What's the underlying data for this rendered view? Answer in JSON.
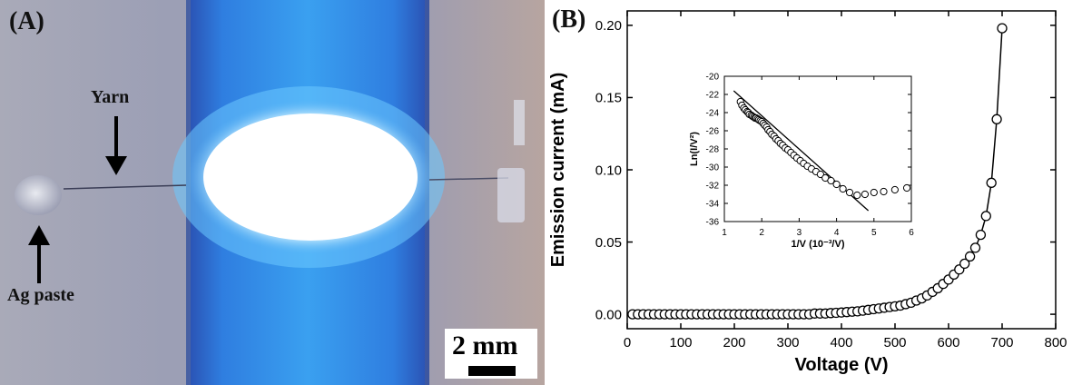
{
  "panel_a": {
    "letter": "(A)",
    "yarn_label": "Yarn",
    "paste_label": "Ag paste",
    "scale_label": "2 mm"
  },
  "panel_b": {
    "letter": "(B)"
  },
  "chart_data": [
    {
      "type": "scatter",
      "title": "",
      "xlabel": "Voltage (V)",
      "ylabel": "Emission current (mA)",
      "xlim": [
        0,
        800
      ],
      "ylim": [
        -0.01,
        0.21
      ],
      "xticks": [
        0,
        100,
        200,
        300,
        400,
        500,
        600,
        700,
        800
      ],
      "yticks": [
        0.0,
        0.05,
        0.1,
        0.15,
        0.2
      ],
      "ytick_labels": [
        "0.00",
        "0.05",
        "0.10",
        "0.15",
        "0.20"
      ],
      "grid": false,
      "marker": "open-circle",
      "connected": true,
      "series": [
        {
          "x": [
            10,
            20,
            30,
            40,
            50,
            60,
            70,
            80,
            90,
            100,
            110,
            120,
            130,
            140,
            150,
            160,
            170,
            180,
            190,
            200,
            210,
            220,
            230,
            240,
            250,
            260,
            270,
            280,
            290,
            300,
            310,
            320,
            330,
            340,
            350,
            360,
            370,
            380,
            390,
            400,
            410,
            420,
            430,
            440,
            450,
            460,
            470,
            480,
            490,
            500,
            510,
            520,
            530,
            540,
            550,
            560,
            570,
            580,
            590,
            600,
            610,
            620,
            630,
            640,
            650,
            660,
            670,
            680,
            690,
            700
          ],
          "y": [
            0.0,
            0.0,
            0.0,
            0.0,
            0.0,
            0.0,
            0.0,
            0.0,
            0.0,
            0.0,
            0.0,
            0.0,
            0.0,
            0.0,
            0.0,
            0.0,
            0.0,
            0.0,
            0.0,
            0.0,
            0.0,
            0.0,
            0.0,
            0.0,
            0.0,
            0.0,
            0.0,
            0.0,
            0.0,
            0.0,
            0.0,
            0.0,
            0.0,
            0.0,
            0.0005,
            0.0005,
            0.0005,
            0.0008,
            0.001,
            0.0012,
            0.0015,
            0.0018,
            0.002,
            0.0025,
            0.003,
            0.0035,
            0.004,
            0.0045,
            0.005,
            0.0055,
            0.006,
            0.007,
            0.008,
            0.0095,
            0.011,
            0.013,
            0.0155,
            0.018,
            0.021,
            0.024,
            0.0275,
            0.031,
            0.035,
            0.04,
            0.046,
            0.055,
            0.068,
            0.091,
            0.135,
            0.198
          ]
        }
      ]
    },
    {
      "type": "scatter",
      "title": "",
      "xlabel": "1/V (10⁻³/V)",
      "ylabel": "Ln(I/V²)",
      "xlim": [
        1,
        6
      ],
      "ylim": [
        -36,
        -20
      ],
      "xticks": [
        1,
        2,
        3,
        4,
        5,
        6
      ],
      "yticks": [
        -36,
        -34,
        -32,
        -30,
        -28,
        -26,
        -24,
        -22,
        -20
      ],
      "grid": false,
      "marker": "open-circle",
      "fit_line": {
        "x": [
          1.25,
          4.85
        ],
        "y": [
          -21.6,
          -34.8
        ]
      },
      "series": [
        {
          "x": [
            1.43,
            1.47,
            1.52,
            1.56,
            1.61,
            1.64,
            1.67,
            1.72,
            1.75,
            1.79,
            1.82,
            1.85,
            1.89,
            1.92,
            1.96,
            2.0,
            2.04,
            2.08,
            2.13,
            2.17,
            2.22,
            2.27,
            2.33,
            2.38,
            2.44,
            2.5,
            2.56,
            2.63,
            2.7,
            2.78,
            2.86,
            2.94,
            3.03,
            3.12,
            3.22,
            3.33,
            3.45,
            3.57,
            3.7,
            3.85,
            4.0,
            4.17,
            4.35,
            4.55,
            4.76,
            5.0,
            5.26,
            5.56,
            5.88
          ],
          "y": [
            -22.8,
            -23.2,
            -23.5,
            -23.7,
            -23.9,
            -24.0,
            -24.2,
            -24.3,
            -24.4,
            -24.5,
            -24.6,
            -24.6,
            -24.7,
            -24.8,
            -24.9,
            -25.0,
            -25.2,
            -25.4,
            -25.6,
            -25.9,
            -26.1,
            -26.4,
            -26.6,
            -26.9,
            -27.1,
            -27.4,
            -27.6,
            -27.9,
            -28.1,
            -28.4,
            -28.7,
            -29.0,
            -29.3,
            -29.6,
            -29.9,
            -30.2,
            -30.5,
            -30.8,
            -31.2,
            -31.5,
            -31.9,
            -32.4,
            -32.8,
            -33.1,
            -33.0,
            -32.8,
            -32.7,
            -32.5,
            -32.3
          ]
        }
      ]
    }
  ]
}
